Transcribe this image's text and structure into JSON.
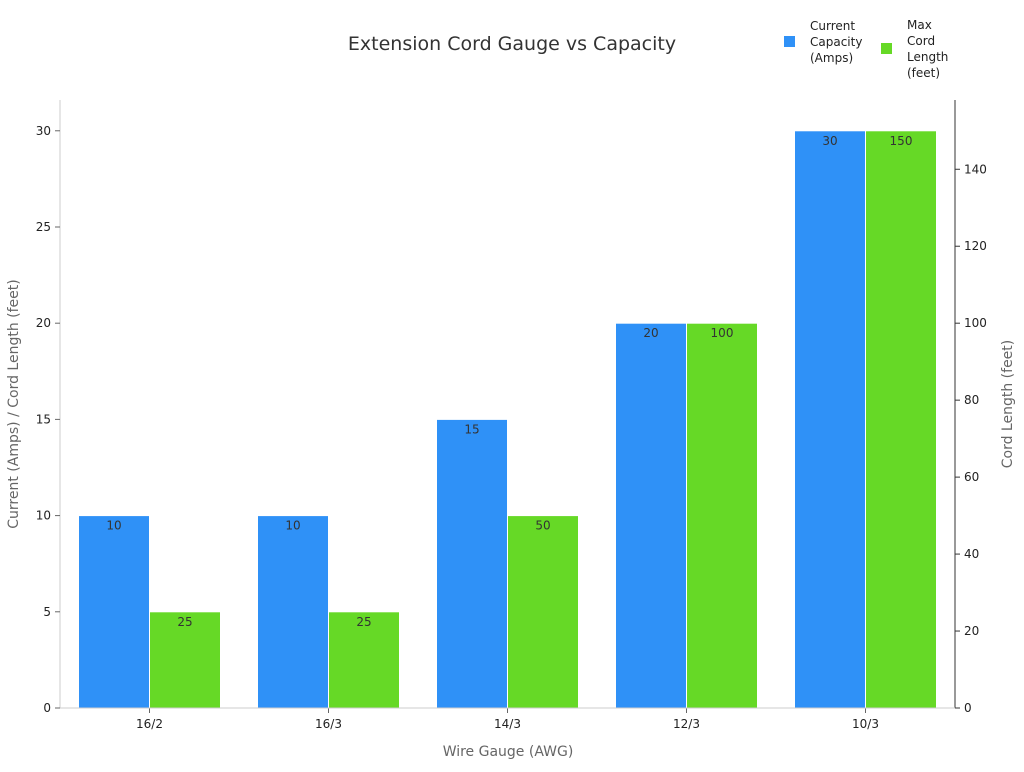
{
  "chart_data": {
    "type": "bar",
    "title": "Extension Cord Gauge vs Capacity",
    "xlabel": "Wire Gauge (AWG)",
    "ylabel": "Current (Amps) / Cord Length (feet)",
    "ylabel_right": "Cord Length (feet)",
    "categories": [
      "16/2",
      "16/3",
      "14/3",
      "12/3",
      "10/3"
    ],
    "series": [
      {
        "name": "Current Capacity (Amps)",
        "legend_lines": [
          "Current",
          "Capacity",
          "(Amps)"
        ],
        "axis": "left",
        "color": "#2f91f7",
        "values": [
          10,
          10,
          15,
          20,
          30
        ]
      },
      {
        "name": "Max Cord Length (feet)",
        "legend_lines": [
          "Max",
          "Cord",
          "Length",
          "(feet)"
        ],
        "axis": "right",
        "color": "#66d926",
        "values": [
          25,
          25,
          50,
          100,
          150
        ]
      }
    ],
    "ylim": [
      0,
      31.6
    ],
    "ylim_right": [
      0,
      158
    ],
    "yticks": [
      0,
      5,
      10,
      15,
      20,
      25,
      30
    ],
    "yticks_right": [
      0,
      20,
      40,
      60,
      80,
      100,
      120,
      140
    ],
    "grid": false,
    "legend_position": "top-right"
  }
}
